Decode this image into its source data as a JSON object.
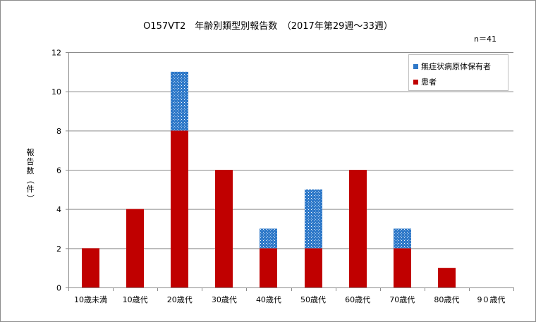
{
  "chart_data": {
    "type": "bar",
    "stacked": true,
    "title": "O157VT2　年齢別類型別報告数　（2017年第29週～33週）",
    "note": "n＝41",
    "ylabel": "報告数（件）",
    "ylim": [
      0,
      12
    ],
    "yticks": [
      0,
      2,
      4,
      6,
      8,
      10,
      12
    ],
    "grid": true,
    "legend_position": "top-right",
    "categories": [
      "10歳未満",
      "10歳代",
      "20歳代",
      "30歳代",
      "40歳代",
      "50歳代",
      "60歳代",
      "70歳代",
      "80歳代",
      "9０歳代"
    ],
    "series": [
      {
        "name": "患者",
        "color": "#c00000",
        "values": [
          2,
          4,
          8,
          6,
          2,
          2,
          6,
          2,
          1,
          0
        ]
      },
      {
        "name": "無症状病原体保有者",
        "color": "#2e78c8",
        "values": [
          0,
          0,
          3,
          0,
          1,
          3,
          0,
          1,
          0,
          0
        ]
      }
    ],
    "legend_order": [
      "無症状病原体保有者",
      "患者"
    ]
  }
}
